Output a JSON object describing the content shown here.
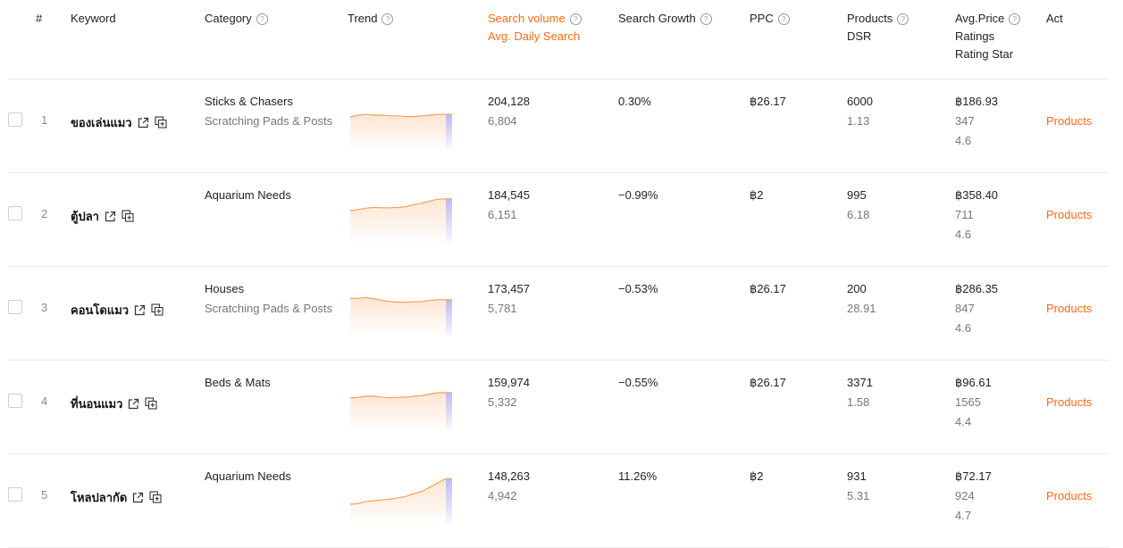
{
  "headers": {
    "index": "#",
    "keyword": "Keyword",
    "category": "Category",
    "trend": "Trend",
    "search_volume": "Search volume",
    "avg_daily_search": "Avg. Daily Search",
    "search_growth": "Search Growth",
    "ppc": "PPC",
    "products": "Products",
    "dsr": "DSR",
    "avg_price": "Avg.Price",
    "ratings": "Ratings",
    "rating_star": "Rating Star",
    "act": "Act"
  },
  "rows": [
    {
      "index": "1",
      "keyword": "ของเล่นแมว",
      "category1": "Sticks & Chasers",
      "category2": "Scratching Pads & Posts",
      "search_volume": "204,128",
      "avg_daily": "6,804",
      "growth": "0.30%",
      "ppc": "฿26.17",
      "products": "6000",
      "dsr": "1.13",
      "avg_price": "฿186.93",
      "ratings": "347",
      "rating_star": "4.6",
      "action": "Products",
      "trend": [
        0.55,
        0.6,
        0.62,
        0.6,
        0.6,
        0.58,
        0.58,
        0.56,
        0.56,
        0.58,
        0.6,
        0.62,
        0.62
      ]
    },
    {
      "index": "2",
      "keyword": "ตู้ปลา",
      "category1": "Aquarium Needs",
      "category2": "",
      "search_volume": "184,545",
      "avg_daily": "6,151",
      "growth": "−0.99%",
      "ppc": "฿2",
      "products": "995",
      "dsr": "6.18",
      "avg_price": "฿358.40",
      "ratings": "711",
      "rating_star": "4.6",
      "action": "Products",
      "trend": [
        0.55,
        0.58,
        0.62,
        0.64,
        0.63,
        0.63,
        0.64,
        0.66,
        0.72,
        0.76,
        0.82,
        0.87,
        0.88
      ]
    },
    {
      "index": "3",
      "keyword": "คอนโดแมว",
      "category1": "Houses",
      "category2": "Scratching Pads & Posts",
      "search_volume": "173,457",
      "avg_daily": "5,781",
      "growth": "−0.53%",
      "ppc": "฿26.17",
      "products": "200",
      "dsr": "28.91",
      "avg_price": "฿286.35",
      "ratings": "847",
      "rating_star": "4.6",
      "action": "Products",
      "trend": [
        0.72,
        0.72,
        0.74,
        0.71,
        0.66,
        0.63,
        0.61,
        0.61,
        0.62,
        0.63,
        0.66,
        0.68,
        0.68
      ]
    },
    {
      "index": "4",
      "keyword": "ที่นอนแมว",
      "category1": "Beds & Mats",
      "category2": "",
      "search_volume": "159,974",
      "avg_daily": "5,332",
      "growth": "−0.55%",
      "ppc": "฿26.17",
      "products": "3371",
      "dsr": "1.58",
      "avg_price": "฿96.61",
      "ratings": "1565",
      "rating_star": "4.4",
      "action": "Products",
      "trend": [
        0.55,
        0.57,
        0.6,
        0.6,
        0.57,
        0.56,
        0.57,
        0.58,
        0.6,
        0.62,
        0.66,
        0.7,
        0.7
      ]
    },
    {
      "index": "5",
      "keyword": "โหลปลากัด",
      "category1": "Aquarium Needs",
      "category2": "",
      "search_volume": "148,263",
      "avg_daily": "4,942",
      "growth": "11.26%",
      "ppc": "฿2",
      "products": "931",
      "dsr": "5.31",
      "avg_price": "฿72.17",
      "ratings": "924",
      "rating_star": "4.7",
      "action": "Products",
      "trend": [
        0.2,
        0.22,
        0.28,
        0.3,
        0.32,
        0.34,
        0.38,
        0.42,
        0.5,
        0.56,
        0.68,
        0.8,
        0.92
      ]
    }
  ],
  "colors": {
    "accent": "#ff6a14",
    "trend_line": "#f5a05a",
    "trend_fill": "#fde4cf",
    "trend_last": "#b9b6f5"
  }
}
